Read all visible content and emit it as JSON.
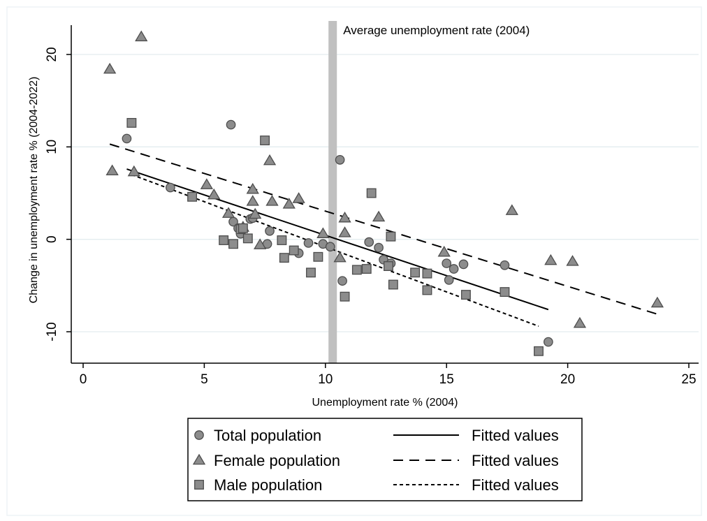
{
  "chart_data": {
    "type": "scatter",
    "xlabel": "Unemployment rate % (2004)",
    "ylabel": "Change in unemployment rate % (2004-2022)",
    "xlim": [
      0,
      25
    ],
    "ylim": [
      -13,
      23
    ],
    "x_ticks": [
      0,
      5,
      10,
      15,
      20,
      25
    ],
    "y_ticks": [
      -10,
      0,
      10,
      20
    ],
    "grid": "horizontal",
    "legend_position": "bottom",
    "reference_line": {
      "x": 10.3,
      "label": "Average unemployment rate (2004)",
      "color": "#c0c0c0"
    },
    "series": [
      {
        "name": "Total population",
        "marker": "circle",
        "color": "#8c8c8c",
        "points": [
          [
            1.8,
            10.9
          ],
          [
            3.6,
            5.6
          ],
          [
            6.1,
            12.4
          ],
          [
            6.2,
            1.9
          ],
          [
            6.4,
            1.2
          ],
          [
            6.5,
            0.6
          ],
          [
            6.6,
            1.1
          ],
          [
            6.9,
            2.2
          ],
          [
            7.0,
            2.3
          ],
          [
            7.6,
            -0.5
          ],
          [
            7.7,
            0.9
          ],
          [
            8.9,
            -1.5
          ],
          [
            9.3,
            -0.4
          ],
          [
            9.9,
            -0.5
          ],
          [
            10.2,
            -0.8
          ],
          [
            10.6,
            8.6
          ],
          [
            10.7,
            -4.5
          ],
          [
            11.8,
            -0.3
          ],
          [
            12.2,
            -0.9
          ],
          [
            12.4,
            -2.2
          ],
          [
            12.7,
            -2.6
          ],
          [
            15.0,
            -2.6
          ],
          [
            15.1,
            -4.4
          ],
          [
            15.3,
            -3.2
          ],
          [
            15.7,
            -2.7
          ],
          [
            17.4,
            -2.8
          ],
          [
            19.2,
            -11.1
          ]
        ]
      },
      {
        "name": "Female population",
        "marker": "triangle",
        "color": "#8c8c8c",
        "points": [
          [
            1.1,
            18.4
          ],
          [
            1.2,
            7.4
          ],
          [
            2.1,
            7.3
          ],
          [
            2.4,
            21.9
          ],
          [
            5.1,
            5.9
          ],
          [
            5.4,
            4.8
          ],
          [
            6.0,
            2.8
          ],
          [
            6.6,
            1.3
          ],
          [
            7.0,
            5.4
          ],
          [
            7.0,
            4.1
          ],
          [
            7.1,
            2.7
          ],
          [
            7.3,
            -0.6
          ],
          [
            7.7,
            8.5
          ],
          [
            7.8,
            4.1
          ],
          [
            8.5,
            3.8
          ],
          [
            8.9,
            4.4
          ],
          [
            9.9,
            0.6
          ],
          [
            10.6,
            -2.0
          ],
          [
            10.8,
            2.3
          ],
          [
            10.8,
            0.7
          ],
          [
            12.2,
            2.4
          ],
          [
            14.9,
            -1.4
          ],
          [
            17.7,
            3.1
          ],
          [
            19.3,
            -2.3
          ],
          [
            20.2,
            -2.4
          ],
          [
            20.5,
            -9.1
          ],
          [
            23.7,
            -6.9
          ]
        ]
      },
      {
        "name": "Male population",
        "marker": "square",
        "color": "#8c8c8c",
        "points": [
          [
            2.0,
            12.6
          ],
          [
            4.5,
            4.6
          ],
          [
            5.8,
            -0.1
          ],
          [
            6.2,
            -0.5
          ],
          [
            6.5,
            1.1
          ],
          [
            6.6,
            1.2
          ],
          [
            6.8,
            0.1
          ],
          [
            7.5,
            10.7
          ],
          [
            8.2,
            -0.1
          ],
          [
            8.3,
            -2.0
          ],
          [
            8.7,
            -1.2
          ],
          [
            9.4,
            -3.6
          ],
          [
            9.7,
            -1.9
          ],
          [
            10.8,
            -6.2
          ],
          [
            11.3,
            -3.3
          ],
          [
            11.7,
            -3.2
          ],
          [
            11.9,
            5.0
          ],
          [
            12.6,
            -2.9
          ],
          [
            12.7,
            0.3
          ],
          [
            12.8,
            -4.9
          ],
          [
            13.7,
            -3.6
          ],
          [
            14.2,
            -3.7
          ],
          [
            14.2,
            -5.5
          ],
          [
            15.8,
            -6.0
          ],
          [
            17.4,
            -5.7
          ],
          [
            18.8,
            -12.1
          ]
        ]
      }
    ],
    "fitted_lines": [
      {
        "name": "Fitted values",
        "style": "solid",
        "x": [
          1.8,
          19.2
        ],
        "y": [
          7.6,
          -7.6
        ]
      },
      {
        "name": "Fitted values",
        "style": "dashed",
        "x": [
          1.1,
          23.7
        ],
        "y": [
          10.3,
          -8.1
        ]
      },
      {
        "name": "Fitted values",
        "style": "dotted",
        "x": [
          2.0,
          18.8
        ],
        "y": [
          7.0,
          -9.4
        ]
      }
    ]
  }
}
